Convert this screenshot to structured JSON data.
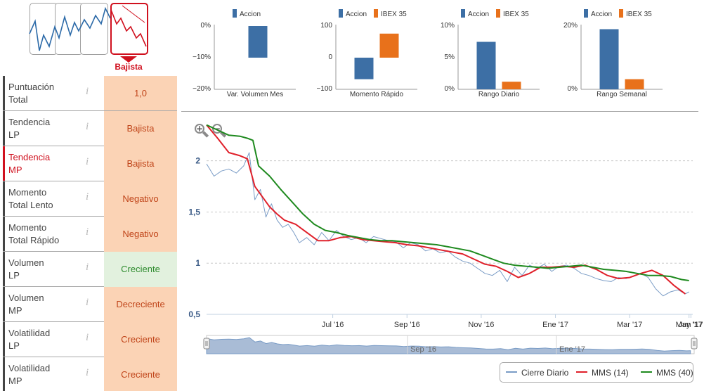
{
  "trend": {
    "options": [
      "Lateral",
      "Alcista",
      "Lateral alcista",
      "Bajista"
    ],
    "active_label": "Bajista",
    "active_color": "#d0101e"
  },
  "indicators": [
    {
      "label_lines": [
        "Puntuación",
        "Total"
      ],
      "value": "1,0",
      "tone": "neg",
      "highlight": false
    },
    {
      "label_lines": [
        "Tendencia",
        "LP"
      ],
      "value": "Bajista",
      "tone": "neg",
      "highlight": false
    },
    {
      "label_lines": [
        "Tendencia",
        "MP"
      ],
      "value": "Bajista",
      "tone": "neg",
      "highlight": true
    },
    {
      "label_lines": [
        "Momento",
        "Total Lento"
      ],
      "value": "Negativo",
      "tone": "neg",
      "highlight": false
    },
    {
      "label_lines": [
        "Momento",
        "Total Rápido"
      ],
      "value": "Negativo",
      "tone": "neg",
      "highlight": false
    },
    {
      "label_lines": [
        "Volumen",
        "LP"
      ],
      "value": "Creciente",
      "tone": "pos",
      "highlight": false
    },
    {
      "label_lines": [
        "Volumen",
        "MP"
      ],
      "value": "Decreciente",
      "tone": "neg",
      "highlight": false
    },
    {
      "label_lines": [
        "Volatilidad",
        "LP"
      ],
      "value": "Creciente",
      "tone": "neg",
      "highlight": false
    },
    {
      "label_lines": [
        "Volatilidad",
        "MP"
      ],
      "value": "Creciente",
      "tone": "neg",
      "highlight": false
    }
  ],
  "info_glyph": "i",
  "colors": {
    "accion": "#3d6fa5",
    "ibex": "#e8711b",
    "close": "#7a9cc6",
    "mms14": "#e0202a",
    "mms40": "#1f8a1f"
  },
  "chart_data": [
    {
      "type": "bar",
      "title": "",
      "xlabel": "Var. Volumen Mes",
      "legend": [
        "Accion"
      ],
      "categories": [
        "Var. Volumen Mes"
      ],
      "series": [
        {
          "name": "Accion",
          "values": [
            -10
          ]
        }
      ],
      "ylim": [
        -20,
        0
      ],
      "yticks": [
        "0%",
        "−10%",
        "−20%"
      ],
      "ytick_values": [
        0,
        -10,
        -20
      ]
    },
    {
      "type": "bar",
      "title": "",
      "xlabel": "Momento Rápido",
      "legend": [
        "Accion",
        "IBEX 35"
      ],
      "categories": [
        "Momento Rápido"
      ],
      "series": [
        {
          "name": "Accion",
          "values": [
            -68
          ]
        },
        {
          "name": "IBEX 35",
          "values": [
            76
          ]
        }
      ],
      "ylim": [
        -100,
        100
      ],
      "yticks": [
        "100",
        "0",
        "−100"
      ],
      "ytick_values": [
        100,
        0,
        -100
      ]
    },
    {
      "type": "bar",
      "title": "",
      "xlabel": "Rango Diario",
      "legend": [
        "Accion",
        "IBEX 35"
      ],
      "categories": [
        "Rango Diario"
      ],
      "series": [
        {
          "name": "Accion",
          "values": [
            7.5
          ]
        },
        {
          "name": "IBEX 35",
          "values": [
            1.2
          ]
        }
      ],
      "ylim": [
        0,
        10
      ],
      "yticks": [
        "10%",
        "5%",
        "0%"
      ],
      "ytick_values": [
        10,
        5,
        0
      ]
    },
    {
      "type": "bar",
      "title": "",
      "xlabel": "Rango Semanal",
      "legend": [
        "Accion",
        "IBEX 35"
      ],
      "categories": [
        "Rango Semanal"
      ],
      "series": [
        {
          "name": "Accion",
          "values": [
            19
          ]
        },
        {
          "name": "IBEX 35",
          "values": [
            3.2
          ]
        }
      ],
      "ylim": [
        0,
        20
      ],
      "yticks": [
        "20%",
        "0%"
      ],
      "ytick_values": [
        20,
        0
      ]
    },
    {
      "type": "line",
      "title": "",
      "xlabel": "",
      "ylabel": "",
      "ylim": [
        0.5,
        2.3
      ],
      "yticks": [
        "2",
        "1,5",
        "1",
        "0,5"
      ],
      "ytick_values": [
        2,
        1.5,
        1,
        0.5
      ],
      "xlim": [
        0,
        13.1
      ],
      "xticks": [
        "Jul '16",
        "Sep '16",
        "Nov '16",
        "Ene '17",
        "Mar '17",
        "May '17",
        "Jun '17"
      ],
      "xtick_values": [
        3.4,
        5.4,
        7.4,
        9.4,
        11.4,
        13.0,
        13.05
      ],
      "navigator_labels": [
        "Sep '16",
        "Ene '17"
      ],
      "navigator_label_values": [
        5.4,
        9.4
      ],
      "legend": [
        "Cierre Diario",
        "MMS (14)",
        "MMS (40)"
      ],
      "series": [
        {
          "name": "Cierre Diario",
          "x": [
            0,
            0.2,
            0.4,
            0.6,
            0.8,
            1.0,
            1.15,
            1.3,
            1.45,
            1.6,
            1.75,
            1.9,
            2.05,
            2.2,
            2.35,
            2.5,
            2.7,
            2.9,
            3.1,
            3.3,
            3.5,
            3.7,
            3.9,
            4.1,
            4.3,
            4.5,
            4.7,
            4.9,
            5.1,
            5.3,
            5.5,
            5.7,
            5.9,
            6.1,
            6.3,
            6.5,
            6.7,
            6.9,
            7.1,
            7.3,
            7.5,
            7.7,
            7.9,
            8.1,
            8.3,
            8.5,
            8.7,
            8.9,
            9.1,
            9.3,
            9.5,
            9.7,
            9.9,
            10.1,
            10.3,
            10.5,
            10.7,
            10.9,
            11.1,
            11.3,
            11.5,
            11.7,
            11.9,
            12.1,
            12.3,
            12.5,
            12.7,
            12.9,
            13.0
          ],
          "values": [
            1.97,
            1.85,
            1.9,
            1.92,
            1.88,
            1.95,
            2.08,
            1.62,
            1.72,
            1.45,
            1.58,
            1.42,
            1.35,
            1.38,
            1.3,
            1.2,
            1.25,
            1.18,
            1.3,
            1.22,
            1.32,
            1.26,
            1.23,
            1.25,
            1.2,
            1.26,
            1.24,
            1.22,
            1.21,
            1.15,
            1.2,
            1.18,
            1.12,
            1.14,
            1.1,
            1.12,
            1.06,
            1.02,
            1.0,
            0.95,
            0.9,
            0.88,
            0.93,
            0.82,
            0.96,
            0.88,
            0.98,
            0.95,
            0.99,
            0.92,
            0.97,
            0.98,
            0.95,
            0.9,
            0.88,
            0.85,
            0.83,
            0.82,
            0.86,
            0.85,
            0.87,
            0.9,
            0.86,
            0.75,
            0.68,
            0.72,
            0.74,
            0.7,
            0.72
          ]
        },
        {
          "name": "MMS (14)",
          "x": [
            0,
            0.3,
            0.6,
            0.9,
            1.1,
            1.3,
            1.5,
            1.7,
            1.9,
            2.1,
            2.4,
            2.7,
            3.0,
            3.3,
            3.6,
            3.9,
            4.2,
            4.5,
            4.8,
            5.1,
            5.4,
            5.7,
            6.0,
            6.3,
            6.6,
            6.9,
            7.2,
            7.5,
            7.8,
            8.1,
            8.4,
            8.7,
            9.0,
            9.3,
            9.6,
            9.9,
            10.2,
            10.5,
            10.8,
            11.1,
            11.4,
            11.7,
            12.0,
            12.3,
            12.6,
            12.9
          ],
          "values": [
            2.35,
            2.22,
            2.08,
            2.05,
            2.02,
            1.75,
            1.65,
            1.55,
            1.48,
            1.42,
            1.38,
            1.3,
            1.22,
            1.22,
            1.25,
            1.26,
            1.23,
            1.22,
            1.21,
            1.2,
            1.18,
            1.17,
            1.15,
            1.13,
            1.11,
            1.09,
            1.04,
            0.99,
            0.97,
            0.92,
            0.86,
            0.9,
            0.96,
            0.96,
            0.97,
            0.96,
            0.98,
            0.94,
            0.88,
            0.85,
            0.86,
            0.9,
            0.93,
            0.88,
            0.78,
            0.7
          ]
        },
        {
          "name": "MMS (40)",
          "x": [
            0,
            0.3,
            0.6,
            0.9,
            1.1,
            1.25,
            1.4,
            1.7,
            2.0,
            2.3,
            2.6,
            2.9,
            3.2,
            3.5,
            3.8,
            4.1,
            4.4,
            4.7,
            5.0,
            5.3,
            5.6,
            5.9,
            6.2,
            6.5,
            6.8,
            7.1,
            7.4,
            7.7,
            8.0,
            8.3,
            8.6,
            8.9,
            9.2,
            9.5,
            9.8,
            10.1,
            10.4,
            10.7,
            11.0,
            11.3,
            11.6,
            11.9,
            12.2,
            12.5,
            12.8,
            13.0
          ],
          "values": [
            2.35,
            2.3,
            2.25,
            2.24,
            2.22,
            2.2,
            1.95,
            1.85,
            1.72,
            1.6,
            1.48,
            1.38,
            1.32,
            1.3,
            1.27,
            1.25,
            1.23,
            1.22,
            1.22,
            1.21,
            1.2,
            1.19,
            1.18,
            1.16,
            1.14,
            1.12,
            1.08,
            1.04,
            1.0,
            0.98,
            0.97,
            0.96,
            0.95,
            0.96,
            0.97,
            0.98,
            0.96,
            0.94,
            0.93,
            0.92,
            0.9,
            0.88,
            0.88,
            0.87,
            0.84,
            0.83
          ]
        }
      ]
    }
  ]
}
